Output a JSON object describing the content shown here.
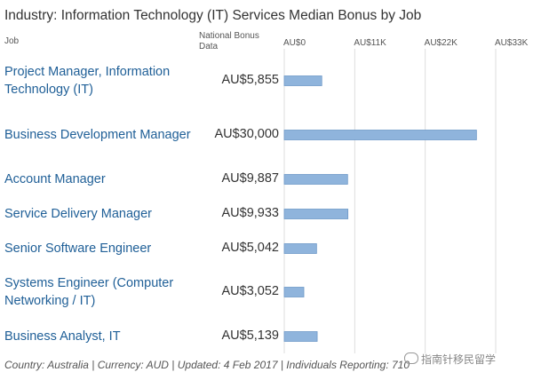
{
  "title": "Industry: Information Technology (IT) Services Median Bonus by Job",
  "headers": {
    "job": "Job",
    "national": "National Bonus Data"
  },
  "footer": "Country: Australia | Currency: AUD | Updated: 4 Feb 2017 | Individuals Reporting: 710",
  "watermark": {
    "text": "指南针移民留学",
    "icon": "chat-bubble-icon"
  },
  "colors": {
    "bar": "#8fb4dc",
    "bar_edge": "#6e99c8",
    "gridline": "#dddddd",
    "job_text": "#1f5f97"
  },
  "chart_data": {
    "type": "bar",
    "orientation": "horizontal",
    "title": "Industry: Information Technology (IT) Services Median Bonus by Job",
    "categories": [
      "Project Manager, Information Technology (IT)",
      "Business Development Manager",
      "Account Manager",
      "Service Delivery Manager",
      "Senior Software Engineer",
      "Systems Engineer (Computer Networking / IT)",
      "Business Analyst, IT"
    ],
    "values": [
      5855,
      30000,
      9887,
      9933,
      5042,
      3052,
      5139
    ],
    "value_labels": [
      "AU$5,855",
      "AU$30,000",
      "AU$9,887",
      "AU$9,933",
      "AU$5,042",
      "AU$3,052",
      "AU$5,139"
    ],
    "xlim": [
      0,
      33000
    ],
    "ticks": [
      0,
      11000,
      22000,
      33000
    ],
    "tick_labels": [
      "AU$0",
      "AU$11K",
      "AU$22K",
      "AU$33K"
    ],
    "grid": true
  }
}
